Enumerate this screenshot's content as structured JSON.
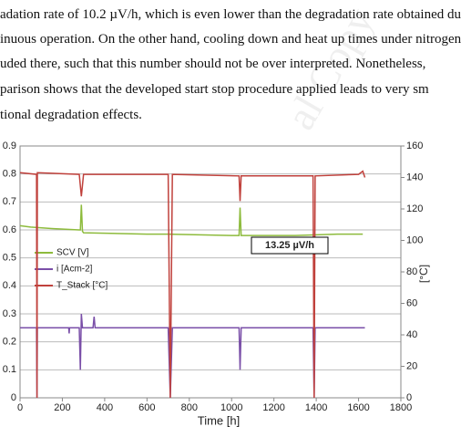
{
  "paragraph": [
    "adation rate of 10.2 µV/h, which is even lower than the degradation rate obtained du",
    "inuous operation. On the other hand, cooling down and heat up times under nitrogen",
    "uded there, such that this number should not be over interpreted. Nonetheless,",
    "parison shows that the developed start stop procedure applied leads to very sm",
    "tional degradation effects."
  ],
  "watermark": "al Copy",
  "chart_data": {
    "type": "line",
    "xlabel": "Time [h]",
    "y2label": "[°C]",
    "annotation": "13.25 µV/h",
    "xlim": [
      0,
      1800
    ],
    "xticks": [
      0,
      200,
      400,
      600,
      800,
      1000,
      1200,
      1400,
      1600,
      1800
    ],
    "ylim": [
      0,
      0.9
    ],
    "yticks": [
      0,
      0.1,
      0.2,
      0.3,
      0.4,
      0.5,
      0.6,
      0.7,
      0.8,
      0.9
    ],
    "y2lim": [
      0,
      160
    ],
    "y2ticks": [
      0,
      20,
      40,
      60,
      80,
      100,
      120,
      140,
      160
    ],
    "grid": true,
    "series": [
      {
        "name": "SCV [V]",
        "color": "#8dbb3c",
        "x": [
          0,
          50,
          150,
          280,
          285,
          290,
          295,
          300,
          600,
          700,
          1000,
          1035,
          1040,
          1045,
          1300,
          1500,
          1620
        ],
        "values": [
          0.615,
          0.61,
          0.605,
          0.6,
          0.6,
          0.69,
          0.595,
          0.59,
          0.585,
          0.585,
          0.58,
          0.58,
          0.68,
          0.58,
          0.58,
          0.585,
          0.585
        ]
      },
      {
        "name": "i [Acm-2]",
        "color": "#7a4fa8",
        "x": [
          0,
          78,
          80,
          82,
          230,
          232,
          234,
          280,
          285,
          290,
          295,
          345,
          350,
          355,
          700,
          710,
          720,
          1035,
          1040,
          1045,
          1385,
          1390,
          1395,
          1630
        ],
        "values": [
          0.25,
          0.25,
          0,
          0.25,
          0.25,
          0.23,
          0.25,
          0.25,
          0.1,
          0.3,
          0.25,
          0.25,
          0.29,
          0.25,
          0.25,
          0,
          0.25,
          0.25,
          0.1,
          0.25,
          0.25,
          0,
          0.25,
          0.25
        ]
      },
      {
        "name": "T_Stack [°C]",
        "color": "#c0413c",
        "axis": "y2",
        "x": [
          0,
          78,
          80,
          82,
          280,
          290,
          300,
          700,
          710,
          720,
          1035,
          1040,
          1045,
          1385,
          1390,
          1395,
          1600,
          1620,
          1630
        ],
        "values": [
          143,
          142,
          0,
          143,
          142,
          128,
          142,
          142,
          0,
          142,
          141,
          125,
          141,
          141,
          0,
          141,
          142,
          144,
          140
        ]
      }
    ]
  }
}
